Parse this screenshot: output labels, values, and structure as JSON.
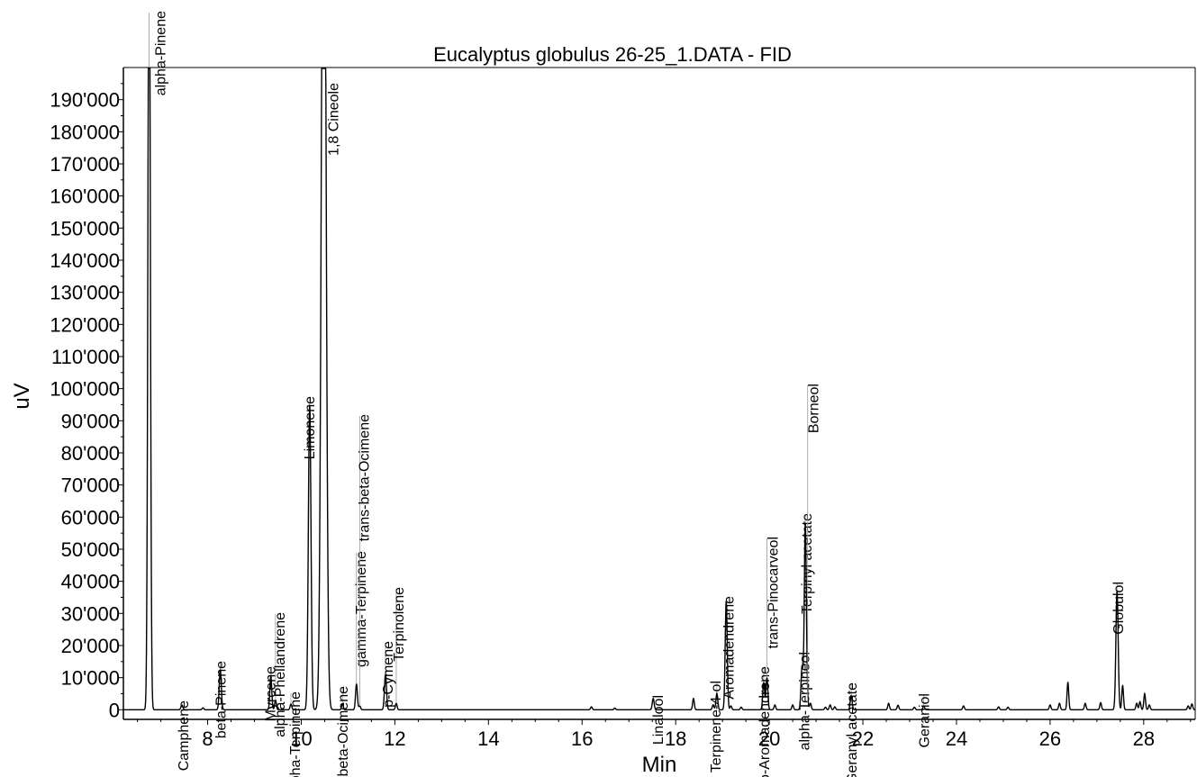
{
  "chart_data": {
    "type": "line",
    "title": "Eucalyptus globulus 26-25_1.DATA - FID",
    "xlabel": "Min",
    "ylabel": "uV",
    "xlim": [
      6.2,
      29.1
    ],
    "ylim": [
      -3000,
      200000
    ],
    "x_ticks": [
      8,
      10,
      12,
      14,
      16,
      18,
      20,
      22,
      24,
      26,
      28
    ],
    "x_tick_labels": [
      "8",
      "10",
      "12",
      "14",
      "16",
      "18",
      "20",
      "22",
      "24",
      "26",
      "28"
    ],
    "y_ticks": [
      0,
      10000,
      20000,
      30000,
      40000,
      50000,
      60000,
      70000,
      80000,
      90000,
      100000,
      110000,
      120000,
      130000,
      140000,
      150000,
      160000,
      170000,
      180000,
      190000
    ],
    "y_tick_labels": [
      "0",
      "10'000",
      "20'000",
      "30'000",
      "40'000",
      "50'000",
      "60'000",
      "70'000",
      "80'000",
      "90'000",
      "100'000",
      "110'000",
      "120'000",
      "130'000",
      "140'000",
      "150'000",
      "160'000",
      "170'000",
      "180'000",
      "190'000"
    ],
    "grid": false,
    "peaks": [
      {
        "name": "alpha-Pinene",
        "x": 6.75,
        "y": 260000,
        "w": 0.025
      },
      {
        "name": "Camphene",
        "x": 7.45,
        "y": 1500,
        "w": 0.02
      },
      {
        "name": "beta-Pinene",
        "x": 8.27,
        "y": 12500,
        "w": 0.022
      },
      {
        "name": "Myrcene",
        "x": 9.35,
        "y": 10500,
        "w": 0.02
      },
      {
        "name": "alpha-Phellandrene",
        "x": 9.45,
        "y": 3000,
        "w": 0.018
      },
      {
        "name": "alpha-Terpinene",
        "x": 9.78,
        "y": 1800,
        "w": 0.018
      },
      {
        "name": "Limonene",
        "x": 10.18,
        "y": 95000,
        "w": 0.028
      },
      {
        "name": "1,8 Cineole",
        "x": 10.48,
        "y": 330000,
        "w": 0.045
      },
      {
        "name": "Cis-beta-Ocimene",
        "x": 10.88,
        "y": 1800,
        "w": 0.018
      },
      {
        "name": "gamma-Terpinene",
        "x": 11.18,
        "y": 8000,
        "w": 0.02
      },
      {
        "name": "trans-beta-Ocimene",
        "x": 11.25,
        "y": 1200,
        "w": 0.018
      },
      {
        "name": "p-Cymene",
        "x": 11.8,
        "y": 11000,
        "w": 0.022
      },
      {
        "name": "Terpinolene",
        "x": 12.03,
        "y": 2000,
        "w": 0.018
      },
      {
        "name": "Linalool",
        "x": 17.52,
        "y": 3500,
        "w": 0.02
      },
      {
        "name": "Terpinene-4-ol",
        "x": 18.88,
        "y": 5000,
        "w": 0.02
      },
      {
        "name": "Aromadendrene",
        "x": 19.08,
        "y": 34000,
        "w": 0.022
      },
      {
        "name": "Allo-Aromadendrene",
        "x": 19.88,
        "y": 8500,
        "w": 0.02
      },
      {
        "name": "trans-Pinocarveol",
        "x": 19.95,
        "y": 10000,
        "w": 0.02
      },
      {
        "name": "alpha-Terpineol",
        "x": 20.7,
        "y": 13500,
        "w": 0.022
      },
      {
        "name": "Terpinyl acetate",
        "x": 20.77,
        "y": 58000,
        "w": 0.022
      },
      {
        "name": "Borneol",
        "x": 20.82,
        "y": 2000,
        "w": 0.018
      },
      {
        "name": "Geranyl acetate",
        "x": 21.75,
        "y": 4500,
        "w": 0.02
      },
      {
        "name": "Geraniol",
        "x": 23.3,
        "y": 1200,
        "w": 0.018
      },
      {
        "name": "Globulol",
        "x": 27.43,
        "y": 37000,
        "w": 0.024
      }
    ],
    "minor_peaks": [
      {
        "x": 7.9,
        "y": 600
      },
      {
        "x": 16.2,
        "y": 900
      },
      {
        "x": 16.7,
        "y": 500
      },
      {
        "x": 18.38,
        "y": 3500
      },
      {
        "x": 18.8,
        "y": 1500
      },
      {
        "x": 19.18,
        "y": 1200
      },
      {
        "x": 19.4,
        "y": 800
      },
      {
        "x": 20.12,
        "y": 1500
      },
      {
        "x": 20.5,
        "y": 1500
      },
      {
        "x": 20.88,
        "y": 2000
      },
      {
        "x": 21.2,
        "y": 800
      },
      {
        "x": 21.3,
        "y": 1500
      },
      {
        "x": 21.4,
        "y": 900
      },
      {
        "x": 22.55,
        "y": 2000
      },
      {
        "x": 22.75,
        "y": 1400
      },
      {
        "x": 23.1,
        "y": 800
      },
      {
        "x": 24.15,
        "y": 1200
      },
      {
        "x": 24.9,
        "y": 900
      },
      {
        "x": 25.1,
        "y": 800
      },
      {
        "x": 26.0,
        "y": 1500
      },
      {
        "x": 26.2,
        "y": 2000
      },
      {
        "x": 26.38,
        "y": 8500
      },
      {
        "x": 26.75,
        "y": 2000
      },
      {
        "x": 27.08,
        "y": 2200
      },
      {
        "x": 27.55,
        "y": 7500
      },
      {
        "x": 27.85,
        "y": 2000
      },
      {
        "x": 27.92,
        "y": 2500
      },
      {
        "x": 28.02,
        "y": 5000
      },
      {
        "x": 28.12,
        "y": 1500
      },
      {
        "x": 28.95,
        "y": 1200
      },
      {
        "x": 29.03,
        "y": 1800
      }
    ]
  }
}
